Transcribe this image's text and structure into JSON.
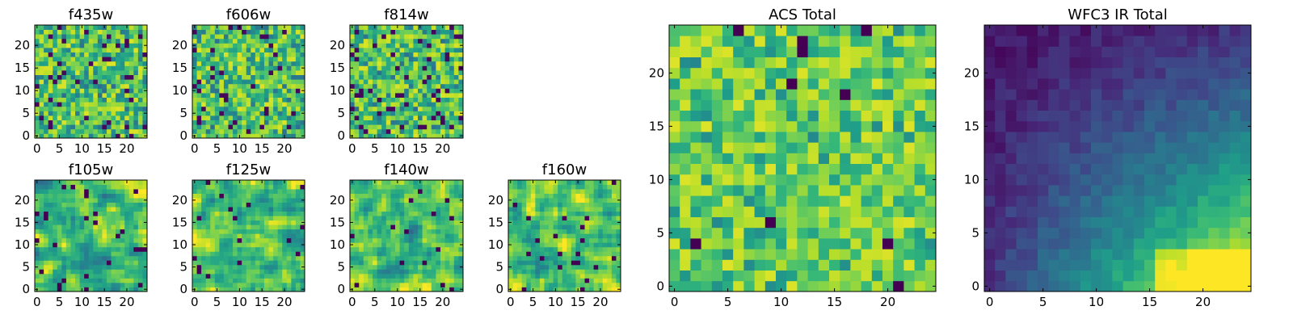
{
  "figure": {
    "colormap": "viridis"
  },
  "chart_data": [
    {
      "type": "heatmap",
      "title": "f435w",
      "ncols": 25,
      "nrows": 25,
      "extent_x": [
        0,
        25
      ],
      "extent_y": [
        0,
        25
      ],
      "xticks": [
        0,
        5,
        10,
        15,
        20
      ],
      "yticks": [
        0,
        5,
        10,
        15,
        20
      ],
      "pattern": "noise"
    },
    {
      "type": "heatmap",
      "title": "f606w",
      "ncols": 25,
      "nrows": 25,
      "extent_x": [
        0,
        25
      ],
      "extent_y": [
        0,
        25
      ],
      "xticks": [
        0,
        5,
        10,
        15,
        20
      ],
      "yticks": [
        0,
        5,
        10,
        15,
        20
      ],
      "pattern": "noise"
    },
    {
      "type": "heatmap",
      "title": "f814w",
      "ncols": 25,
      "nrows": 25,
      "extent_x": [
        0,
        25
      ],
      "extent_y": [
        0,
        25
      ],
      "xticks": [
        0,
        5,
        10,
        15,
        20
      ],
      "yticks": [
        0,
        5,
        10,
        15,
        20
      ],
      "pattern": "noise"
    },
    {
      "type": "heatmap",
      "title": "f105w",
      "ncols": 25,
      "nrows": 25,
      "extent_x": [
        0,
        25
      ],
      "extent_y": [
        0,
        25
      ],
      "xticks": [
        0,
        5,
        10,
        15,
        20
      ],
      "yticks": [
        0,
        5,
        10,
        15,
        20
      ],
      "pattern": "smooth-noise"
    },
    {
      "type": "heatmap",
      "title": "f125w",
      "ncols": 25,
      "nrows": 25,
      "extent_x": [
        0,
        25
      ],
      "extent_y": [
        0,
        25
      ],
      "xticks": [
        0,
        5,
        10,
        15,
        20
      ],
      "yticks": [
        0,
        5,
        10,
        15,
        20
      ],
      "pattern": "smooth-noise"
    },
    {
      "type": "heatmap",
      "title": "f140w",
      "ncols": 25,
      "nrows": 25,
      "extent_x": [
        0,
        25
      ],
      "extent_y": [
        0,
        25
      ],
      "xticks": [
        0,
        5,
        10,
        15,
        20
      ],
      "yticks": [
        0,
        5,
        10,
        15,
        20
      ],
      "pattern": "smooth-noise"
    },
    {
      "type": "heatmap",
      "title": "f160w",
      "ncols": 25,
      "nrows": 25,
      "extent_x": [
        0,
        25
      ],
      "extent_y": [
        0,
        25
      ],
      "xticks": [
        0,
        5,
        10,
        15,
        20
      ],
      "yticks": [
        0,
        5,
        10,
        15,
        20
      ],
      "pattern": "smooth-noise"
    },
    {
      "type": "heatmap",
      "title": "ACS Total",
      "ncols": 25,
      "nrows": 25,
      "extent_x": [
        0,
        25
      ],
      "extent_y": [
        0,
        25
      ],
      "xticks": [
        0,
        5,
        10,
        15,
        20
      ],
      "yticks": [
        0,
        5,
        10,
        15,
        20
      ],
      "pattern": "noise-bright"
    },
    {
      "type": "heatmap",
      "title": "WFC3 IR Total",
      "ncols": 25,
      "nrows": 25,
      "extent_x": [
        0,
        25
      ],
      "extent_y": [
        0,
        25
      ],
      "xticks": [
        0,
        5,
        10,
        15,
        20
      ],
      "yticks": [
        0,
        5,
        10,
        15,
        20
      ],
      "pattern": "gradient"
    }
  ]
}
